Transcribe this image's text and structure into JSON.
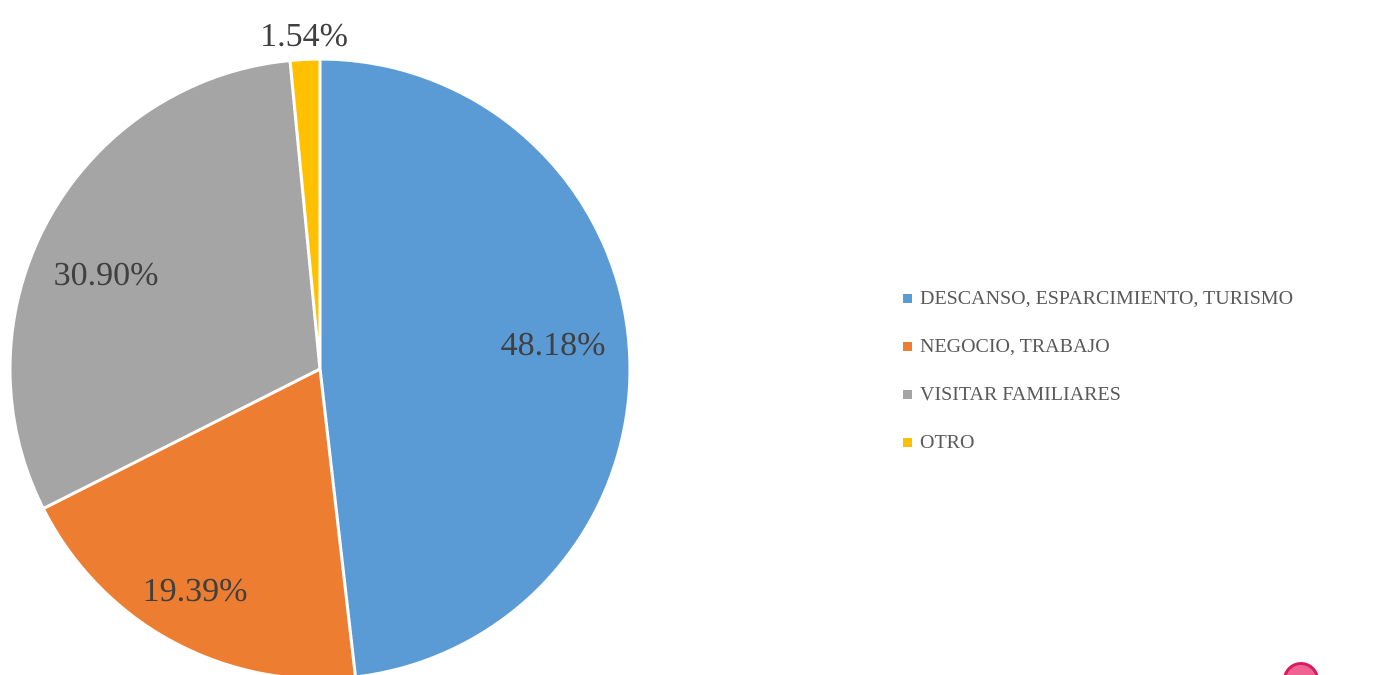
{
  "chart_data": {
    "type": "pie",
    "title": "",
    "slices": [
      {
        "label": "DESCANSO, ESPARCIMIENTO, TURISMO",
        "value": 48.18,
        "display": "48.18%",
        "color": "#5B9BD5"
      },
      {
        "label": "NEGOCIO, TRABAJO",
        "value": 19.39,
        "display": "19.39%",
        "color": "#ED7D31"
      },
      {
        "label": "VISITAR FAMILIARES",
        "value": 30.9,
        "display": "30.90%",
        "color": "#A5A5A5"
      },
      {
        "label": "OTRO",
        "value": 1.54,
        "display": "1.54%",
        "color": "#FFC000"
      }
    ],
    "legend_position": "right",
    "start_angle_deg": 0,
    "direction": "clockwise",
    "slice_border_color": "#ffffff"
  },
  "overlay": {
    "corner_badge_color": "#f06292"
  }
}
